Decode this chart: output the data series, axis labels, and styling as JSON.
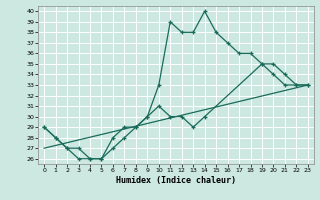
{
  "xlabel": "Humidex (Indice chaleur)",
  "background_color": "#cce8e0",
  "grid_color": "#b0d8d0",
  "line_color": "#1a6b5a",
  "xlim": [
    -0.5,
    23.5
  ],
  "ylim": [
    25.5,
    40.5
  ],
  "xticks": [
    0,
    1,
    2,
    3,
    4,
    5,
    6,
    7,
    8,
    9,
    10,
    11,
    12,
    13,
    14,
    15,
    16,
    17,
    18,
    19,
    20,
    21,
    22,
    23
  ],
  "yticks": [
    26,
    27,
    28,
    29,
    30,
    31,
    32,
    33,
    34,
    35,
    36,
    37,
    38,
    39,
    40
  ],
  "line1_x": [
    0,
    1,
    2,
    3,
    4,
    5,
    6,
    7,
    8,
    9,
    10,
    11,
    12,
    13,
    14,
    15,
    16,
    17,
    18,
    19,
    20,
    21,
    22,
    23
  ],
  "line1_y": [
    29,
    28,
    27,
    26,
    26,
    26,
    28,
    29,
    29,
    30,
    33,
    39,
    38,
    38,
    40,
    38,
    37,
    36,
    36,
    35,
    34,
    33,
    33,
    33
  ],
  "line2_x": [
    0,
    1,
    2,
    3,
    4,
    5,
    6,
    7,
    8,
    9,
    10,
    11,
    12,
    13,
    14,
    19,
    20,
    21,
    22,
    23
  ],
  "line2_y": [
    29,
    28,
    27,
    27,
    26,
    26,
    27,
    28,
    29,
    30,
    31,
    30,
    30,
    29,
    30,
    35,
    35,
    34,
    33,
    33
  ],
  "line3_x": [
    0,
    23
  ],
  "line3_y": [
    27,
    33
  ]
}
